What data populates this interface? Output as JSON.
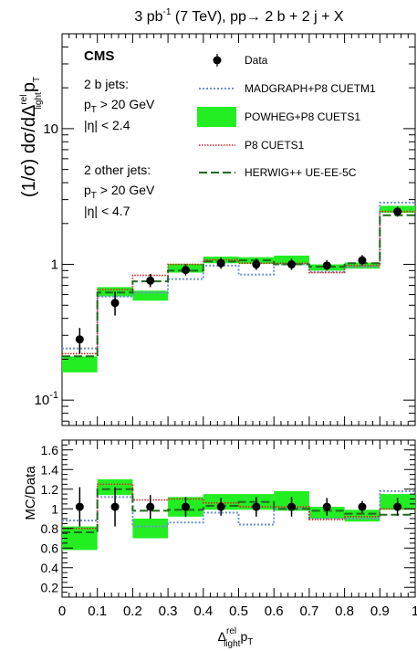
{
  "chart_data": {
    "type": "histogram-ratio",
    "title": {
      "main": "3 pb",
      "sup": "-1",
      "rest": " (7 TeV),  pp→ 2 b + 2 j + X"
    },
    "experiment": "CMS",
    "annotations": {
      "bjets_title": "2 b jets:",
      "bjets_pt": {
        "main": "p",
        "sub": "T",
        "rest": " > 20 GeV"
      },
      "bjets_eta": "|η| < 2.4",
      "ojets_title": "2 other jets:",
      "ojets_pt": {
        "main": "p",
        "sub": "T",
        "rest": " > 20 GeV"
      },
      "ojets_eta": "|η| < 4.7"
    },
    "ylabel_top": {
      "main": "(1/σ) dσ/dΔ",
      "sup": "rel",
      "sub": "light",
      "rest": "p",
      "sub2": "T"
    },
    "ylabel_bottom": "MC/Data",
    "xlabel": {
      "main": "Δ",
      "sup": "rel",
      "sub": "light",
      "rest": "p",
      "sub2": "T"
    },
    "x_ticklabels": [
      "0",
      "0.1",
      "0.2",
      "0.3",
      "0.4",
      "0.5",
      "0.6",
      "0.7",
      "0.8",
      "0.9",
      "1"
    ],
    "y_top_ticklabels": [
      {
        "value": 0.1,
        "base": "10",
        "sup": "-1"
      },
      {
        "value": 1,
        "text": "1"
      },
      {
        "value": 10,
        "text": "10"
      }
    ],
    "y_bottom_ticklabels": [
      "0.2",
      "0.4",
      "0.6",
      "0.8",
      "1",
      "1.2",
      "1.4",
      "1.6"
    ],
    "xlim": [
      0,
      1
    ],
    "ylim_top": [
      0.065,
      50
    ],
    "ylog_top": true,
    "ylim_bottom": [
      0.1,
      1.7
    ],
    "bin_edges": [
      0,
      0.1,
      0.2,
      0.3,
      0.4,
      0.5,
      0.6,
      0.7,
      0.8,
      0.9,
      1.0
    ],
    "legend": {
      "data": "Data",
      "madgraph": "MADGRAPH+P8 CUETM1",
      "powheg": "POWHEG+P8 CUETS1",
      "pythia": "P8 CUETS1",
      "herwig": "HERWIG++ UE-EE-5C"
    },
    "legend_placement": "top-right",
    "colors": {
      "madgraph": "#6f8fd8",
      "powheg": "#22ee22",
      "pythia": "#dd2222",
      "herwig": "#1e6b1e",
      "data": "#000000"
    },
    "data": {
      "x": [
        0.05,
        0.15,
        0.25,
        0.35,
        0.45,
        0.55,
        0.65,
        0.75,
        0.85,
        0.95
      ],
      "y": [
        0.28,
        0.52,
        0.76,
        0.91,
        1.02,
        1.0,
        1.0,
        0.98,
        1.07,
        2.45
      ],
      "err_low": [
        0.06,
        0.1,
        0.08,
        0.08,
        0.09,
        0.09,
        0.09,
        0.08,
        0.09,
        0.2
      ],
      "err_high": [
        0.06,
        0.11,
        0.09,
        0.09,
        0.1,
        0.1,
        0.1,
        0.09,
        0.1,
        0.22
      ]
    },
    "series_top": {
      "madgraph": [
        0.24,
        0.58,
        0.62,
        0.78,
        0.98,
        0.84,
        1.0,
        0.88,
        0.96,
        2.85
      ],
      "powheg_center": [
        0.185,
        0.63,
        0.59,
        0.94,
        1.08,
        1.07,
        1.08,
        0.95,
        0.98,
        2.55
      ],
      "powheg_halfwidth": [
        0.025,
        0.05,
        0.05,
        0.07,
        0.06,
        0.06,
        0.08,
        0.05,
        0.05,
        0.15
      ],
      "pythia": [
        0.22,
        0.65,
        0.83,
        1.0,
        1.08,
        1.02,
        1.02,
        0.87,
        0.98,
        2.45
      ],
      "herwig": [
        0.21,
        0.62,
        0.75,
        0.9,
        1.05,
        1.07,
        1.0,
        0.96,
        1.02,
        2.3
      ]
    },
    "data_ratio": {
      "y": [
        1.02,
        1.02,
        1.02,
        1.02,
        1.02,
        1.02,
        1.02,
        1.02,
        1.02,
        1.02
      ],
      "err": [
        0.2,
        0.2,
        0.12,
        0.1,
        0.09,
        0.1,
        0.1,
        0.09,
        0.06,
        0.09
      ]
    },
    "series_ratio": {
      "madgraph": [
        0.88,
        1.12,
        0.82,
        0.86,
        0.96,
        0.84,
        1.0,
        0.9,
        0.9,
        1.18
      ],
      "powheg_center": [
        0.7,
        1.22,
        0.8,
        1.02,
        1.07,
        1.07,
        1.08,
        0.96,
        0.93,
        1.07
      ],
      "powheg_halfwidth": [
        0.12,
        0.08,
        0.1,
        0.1,
        0.08,
        0.08,
        0.1,
        0.06,
        0.06,
        0.08
      ],
      "pythia": [
        0.8,
        1.25,
        1.09,
        1.1,
        1.06,
        1.02,
        1.02,
        0.89,
        0.92,
        1.0
      ],
      "herwig": [
        0.76,
        1.2,
        0.98,
        0.99,
        1.03,
        1.07,
        1.0,
        0.98,
        0.95,
        0.94
      ]
    }
  }
}
